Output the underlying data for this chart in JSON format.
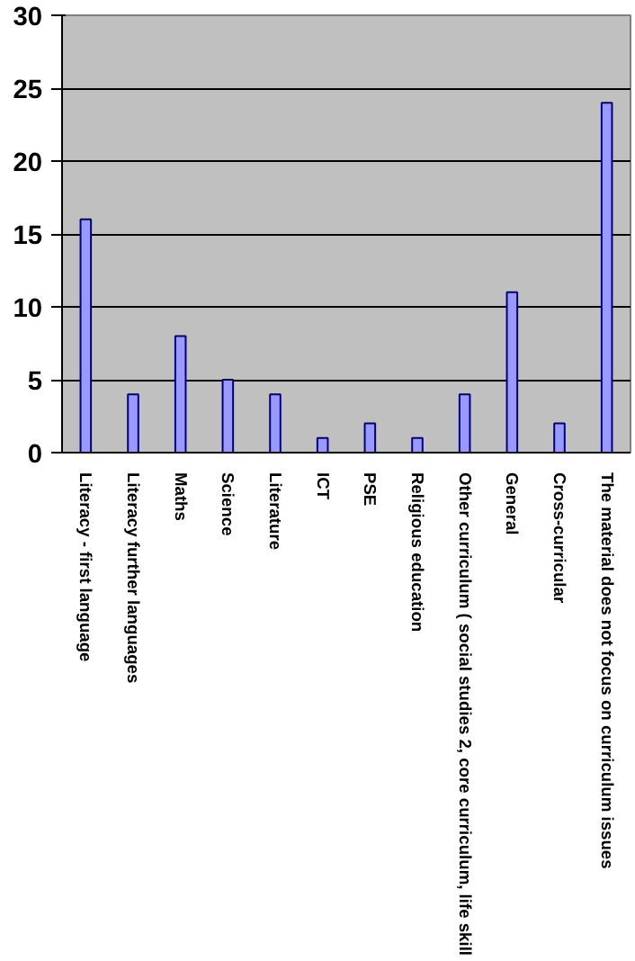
{
  "chart_data": {
    "type": "bar",
    "categories": [
      "Literacy - first language",
      "Literacy further languages",
      "Maths",
      "Science",
      "Literature",
      "ICT",
      "PSE",
      "Religious education",
      "Other curriculum ( social studies 2, core curriculum, life skill",
      "General",
      "Cross-curricular",
      "The material does not focus on curriculum issues"
    ],
    "values": [
      16,
      4,
      8,
      5,
      4,
      1,
      2,
      1,
      4,
      11,
      2,
      24
    ],
    "color": "#9999ff",
    "ylim": [
      0,
      30
    ],
    "yticks": [
      0,
      5,
      10,
      15,
      20,
      25,
      30
    ],
    "grid": "y"
  }
}
